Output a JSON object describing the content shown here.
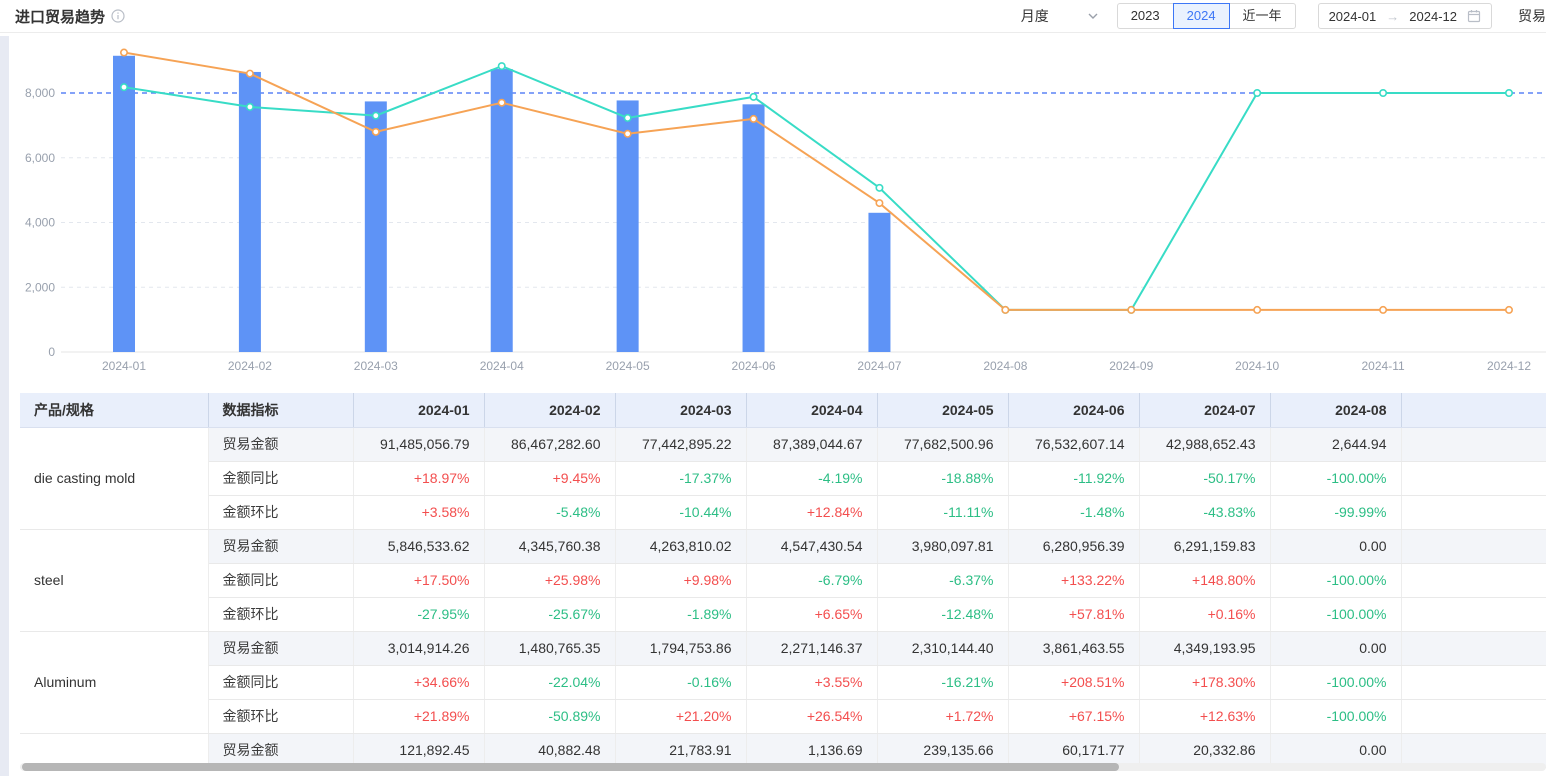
{
  "header": {
    "title": "进口贸易趋势",
    "controls": {
      "period_value": "月度",
      "year_buttons": [
        "2023",
        "2024",
        "近一年"
      ],
      "selected_year": "2024",
      "date_start": "2024-01",
      "date_end": "2024-12",
      "partial_label": "贸易"
    }
  },
  "colors": {
    "accent_blue": "#3d77f6",
    "bar_blue": "#5e93f6",
    "line_orange": "#f6a355",
    "line_teal": "#38dcc6",
    "refline_blue": "#5b83f6",
    "positive_red": "#f34e4e",
    "negative_green": "#2cbe85",
    "table_header_bg": "#e9effb",
    "shaded_row_bg": "#f3f5f9"
  },
  "chart_data": {
    "type": "combo-bar-line",
    "categories": [
      "2024-01",
      "2024-02",
      "2024-03",
      "2024-04",
      "2024-05",
      "2024-06",
      "2024-07",
      "2024-08",
      "2024-09",
      "2024-10",
      "2024-11",
      "2024-12"
    ],
    "series": [
      {
        "name": "trade-amount-bar",
        "kind": "bar",
        "color": "#5e93f6",
        "values": [
          9150,
          8650,
          7740,
          8740,
          7770,
          7650,
          4300,
          0,
          null,
          null,
          null,
          null
        ]
      },
      {
        "name": "orange-line",
        "kind": "line",
        "color": "#f6a355",
        "values": [
          9250,
          8600,
          6800,
          7700,
          6740,
          7200,
          4600,
          1300,
          1300,
          1300,
          1300,
          1300
        ]
      },
      {
        "name": "teal-line",
        "kind": "line",
        "color": "#38dcc6",
        "values": [
          8180,
          7570,
          7300,
          8830,
          7230,
          7880,
          5070,
          1300,
          1300,
          8000,
          8000,
          8000
        ]
      }
    ],
    "yticks": [
      0,
      2000,
      4000,
      6000,
      8000
    ],
    "ylim": [
      0,
      9600
    ],
    "refline": {
      "value": 8000,
      "color": "#5b83f6",
      "style": "dashed"
    },
    "grid": true,
    "legend": "none",
    "title": ""
  },
  "table": {
    "col1_header": "产品/规格",
    "col2_header": "数据指标",
    "month_headers": [
      "2024-01",
      "2024-02",
      "2024-03",
      "2024-04",
      "2024-05",
      "2024-06",
      "2024-07",
      "2024-08"
    ],
    "groups": [
      {
        "product": "die casting mold",
        "rows": [
          {
            "metric": "贸易金额",
            "values": [
              "91,485,056.79",
              "86,467,282.60",
              "77,442,895.22",
              "87,389,044.67",
              "77,682,500.96",
              "76,532,607.14",
              "42,988,652.43",
              "2,644.94"
            ]
          },
          {
            "metric": "金额同比",
            "values": [
              "+18.97%",
              "+9.45%",
              "-17.37%",
              "-4.19%",
              "-18.88%",
              "-11.92%",
              "-50.17%",
              "-100.00%"
            ]
          },
          {
            "metric": "金额环比",
            "values": [
              "+3.58%",
              "-5.48%",
              "-10.44%",
              "+12.84%",
              "-11.11%",
              "-1.48%",
              "-43.83%",
              "-99.99%"
            ]
          }
        ]
      },
      {
        "product": "steel",
        "rows": [
          {
            "metric": "贸易金额",
            "values": [
              "5,846,533.62",
              "4,345,760.38",
              "4,263,810.02",
              "4,547,430.54",
              "3,980,097.81",
              "6,280,956.39",
              "6,291,159.83",
              "0.00"
            ]
          },
          {
            "metric": "金额同比",
            "values": [
              "+17.50%",
              "+25.98%",
              "+9.98%",
              "-6.79%",
              "-6.37%",
              "+133.22%",
              "+148.80%",
              "-100.00%"
            ]
          },
          {
            "metric": "金额环比",
            "values": [
              "-27.95%",
              "-25.67%",
              "-1.89%",
              "+6.65%",
              "-12.48%",
              "+57.81%",
              "+0.16%",
              "-100.00%"
            ]
          }
        ]
      },
      {
        "product": "Aluminum",
        "rows": [
          {
            "metric": "贸易金额",
            "values": [
              "3,014,914.26",
              "1,480,765.35",
              "1,794,753.86",
              "2,271,146.37",
              "2,310,144.40",
              "3,861,463.55",
              "4,349,193.95",
              "0.00"
            ]
          },
          {
            "metric": "金额同比",
            "values": [
              "+34.66%",
              "-22.04%",
              "-0.16%",
              "+3.55%",
              "-16.21%",
              "+208.51%",
              "+178.30%",
              "-100.00%"
            ]
          },
          {
            "metric": "金额环比",
            "values": [
              "+21.89%",
              "-50.89%",
              "+21.20%",
              "+26.54%",
              "+1.72%",
              "+67.15%",
              "+12.63%",
              "-100.00%"
            ]
          }
        ]
      },
      {
        "product": "",
        "rows": [
          {
            "metric": "贸易金额",
            "values": [
              "121,892.45",
              "40,882.48",
              "21,783.91",
              "1,136.69",
              "239,135.66",
              "60,171.77",
              "20,332.86",
              "0.00"
            ]
          }
        ]
      }
    ]
  }
}
